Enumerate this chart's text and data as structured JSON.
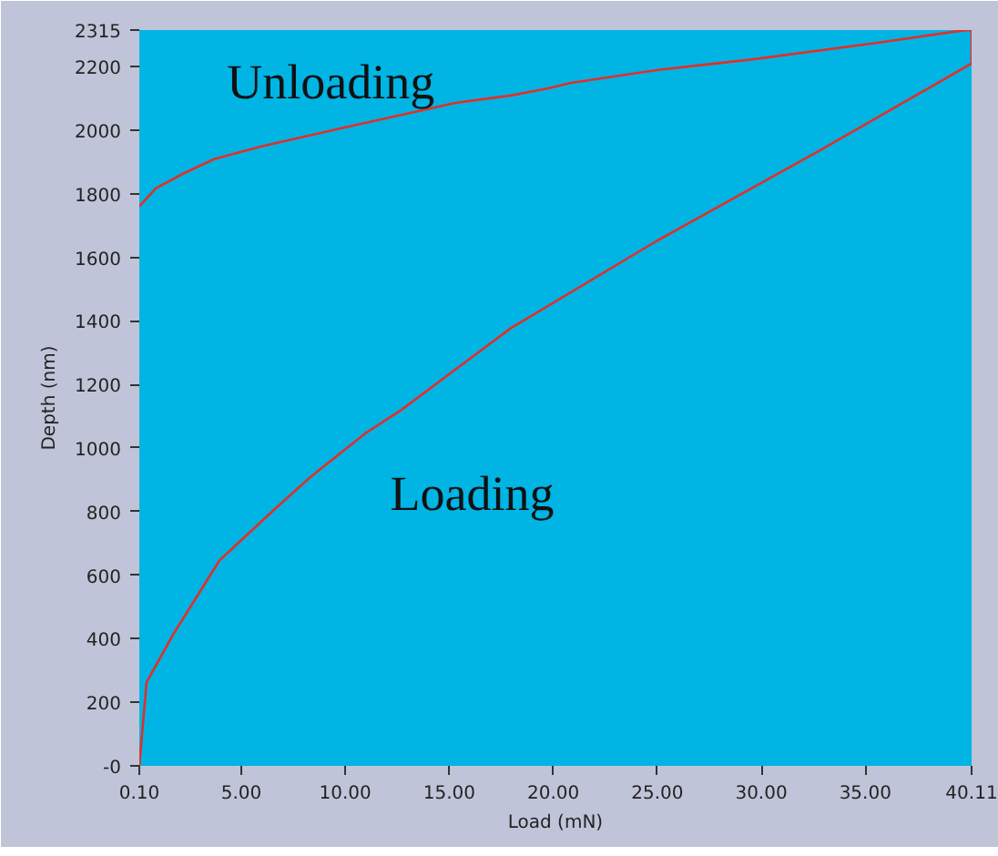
{
  "chart_data": {
    "type": "line",
    "xlabel": "Load (mN)",
    "ylabel": "Depth (nm)",
    "series": [
      {
        "color": "#e0302a",
        "x": [
          0.1,
          0.45,
          1.76,
          3.95,
          6.58,
          8.33,
          10.96,
          12.7,
          17.96,
          24.96,
          32.84,
          40.11,
          40.11
        ],
        "values": [
          0,
          263,
          417,
          646,
          806,
          909,
          1046,
          1120,
          1377,
          1651,
          1937,
          2210,
          2315
        ]
      },
      {
        "color": "#e0302a",
        "x": [
          40.11,
          39.7,
          35.5,
          29.6,
          24.97,
          20.85,
          19.7,
          17.96,
          15.3,
          9.82,
          5.97,
          3.69,
          2.2,
          0.89,
          0.1
        ],
        "values": [
          2315,
          2314,
          2274,
          2223,
          2189,
          2149,
          2131,
          2109,
          2086,
          2006,
          1949,
          1909,
          1863,
          1817,
          1760
        ]
      }
    ],
    "annotations": [
      "Unloading",
      "Loading"
    ],
    "xlim": [
      0.1,
      40.11
    ],
    "ylim": [
      0,
      2315
    ],
    "xticks": [
      {
        "value": 0.1,
        "label": "0.10"
      },
      {
        "value": 5,
        "label": "5.00"
      },
      {
        "value": 10,
        "label": "10.00"
      },
      {
        "value": 15,
        "label": "15.00"
      },
      {
        "value": 20,
        "label": "20.00"
      },
      {
        "value": 25,
        "label": "25.00"
      },
      {
        "value": 30,
        "label": "30.00"
      },
      {
        "value": 35,
        "label": "35.00"
      },
      {
        "value": 40.11,
        "label": "40.11"
      }
    ],
    "yticks": [
      {
        "value": 0,
        "label": "-0"
      },
      200,
      400,
      600,
      800,
      1000,
      1200,
      1400,
      1600,
      1800,
      2000,
      2200,
      2315
    ],
    "line_style": "solid"
  }
}
